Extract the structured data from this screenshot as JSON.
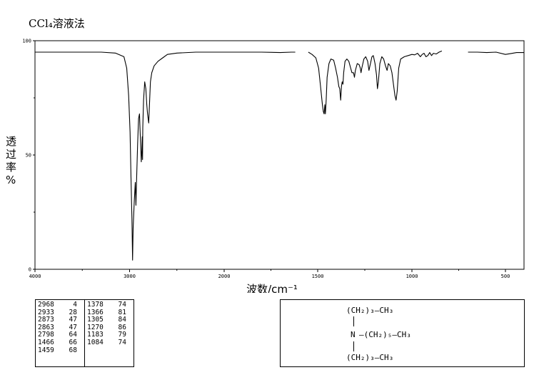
{
  "solvent_label": "CCl₄溶液法",
  "chart_data": {
    "type": "line",
    "title": "",
    "xlabel": "波数/cm⁻¹",
    "ylabel": "透过率%",
    "xlim": [
      4000,
      400
    ],
    "ylim": [
      0,
      100
    ],
    "x_ticks": [
      "4000",
      "3000",
      "2000",
      "1500",
      "1000",
      "500"
    ],
    "y_ticks": [
      "0",
      "50",
      "100"
    ],
    "grid": false,
    "series": [
      {
        "segments": [
          [
            [
              4000,
              95
            ],
            [
              3600,
              95
            ],
            [
              3300,
              95
            ],
            [
              3150,
              94.6
            ],
            [
              3060,
              93
            ],
            [
              3030,
              88
            ],
            [
              3010,
              76
            ],
            [
              2995,
              60
            ],
            [
              2985,
              40
            ],
            [
              2975,
              22
            ],
            [
              2968,
              4
            ],
            [
              2962,
              18
            ],
            [
              2950,
              30
            ],
            [
              2940,
              38
            ],
            [
              2933,
              28
            ],
            [
              2925,
              40
            ],
            [
              2915,
              55
            ],
            [
              2905,
              66
            ],
            [
              2895,
              68
            ],
            [
              2888,
              60
            ],
            [
              2881,
              52
            ],
            [
              2876,
              47
            ],
            [
              2870,
              52
            ],
            [
              2866,
              58
            ],
            [
              2863,
              48
            ],
            [
              2860,
              62
            ],
            [
              2852,
              74
            ],
            [
              2840,
              82
            ],
            [
              2828,
              79
            ],
            [
              2818,
              72
            ],
            [
              2810,
              68
            ],
            [
              2798,
              64
            ],
            [
              2792,
              70
            ],
            [
              2780,
              82
            ],
            [
              2765,
              86
            ],
            [
              2740,
              89
            ],
            [
              2700,
              91
            ],
            [
              2650,
              92.5
            ],
            [
              2600,
              94
            ],
            [
              2500,
              94.6
            ],
            [
              2300,
              95
            ],
            [
              2000,
              95
            ],
            [
              1800,
              95
            ],
            [
              1700,
              94.8
            ],
            [
              1640,
              95
            ],
            [
              1620,
              95
            ]
          ],
          [
            [
              1550,
              95
            ],
            [
              1530,
              94
            ],
            [
              1510,
              92.5
            ],
            [
              1495,
              88
            ],
            [
              1485,
              80
            ],
            [
              1475,
              72
            ],
            [
              1470,
              69
            ],
            [
              1466,
              68
            ],
            [
              1462,
              72
            ],
            [
              1459,
              68
            ],
            [
              1455,
              74
            ],
            [
              1450,
              84
            ],
            [
              1440,
              90
            ],
            [
              1430,
              92
            ],
            [
              1415,
              91.5
            ],
            [
              1405,
              88
            ],
            [
              1395,
              84
            ],
            [
              1388,
              80
            ],
            [
              1383,
              79
            ],
            [
              1378,
              74
            ],
            [
              1374,
              80
            ],
            [
              1370,
              82
            ],
            [
              1366,
              81
            ],
            [
              1362,
              86
            ],
            [
              1355,
              91
            ],
            [
              1345,
              92
            ],
            [
              1335,
              91
            ],
            [
              1325,
              88
            ],
            [
              1318,
              86
            ],
            [
              1310,
              86
            ],
            [
              1305,
              84
            ],
            [
              1300,
              87
            ],
            [
              1290,
              90
            ],
            [
              1280,
              89.5
            ],
            [
              1274,
              88
            ],
            [
              1270,
              86
            ],
            [
              1266,
              88
            ],
            [
              1255,
              92
            ],
            [
              1245,
              93
            ],
            [
              1235,
              91
            ],
            [
              1228,
              87
            ],
            [
              1220,
              90
            ],
            [
              1212,
              93
            ],
            [
              1205,
              93.5
            ],
            [
              1196,
              90
            ],
            [
              1188,
              85
            ],
            [
              1183,
              79
            ],
            [
              1178,
              82
            ],
            [
              1170,
              90
            ],
            [
              1160,
              93
            ],
            [
              1150,
              92
            ],
            [
              1140,
              89
            ],
            [
              1132,
              87
            ],
            [
              1125,
              90
            ],
            [
              1115,
              89
            ],
            [
              1106,
              86
            ],
            [
              1098,
              81
            ],
            [
              1090,
              76
            ],
            [
              1084,
              74
            ],
            [
              1078,
              78
            ],
            [
              1070,
              88
            ],
            [
              1060,
              92
            ],
            [
              1040,
              93
            ],
            [
              1020,
              93.5
            ],
            [
              1000,
              94
            ],
            [
              985,
              93.8
            ],
            [
              970,
              94.5
            ],
            [
              955,
              93
            ],
            [
              945,
              94
            ],
            [
              935,
              94.5
            ],
            [
              925,
              93
            ],
            [
              915,
              93.5
            ],
            [
              905,
              94.8
            ],
            [
              895,
              93.5
            ],
            [
              885,
              94.5
            ],
            [
              870,
              94.2
            ],
            [
              855,
              95
            ],
            [
              840,
              95.5
            ]
          ],
          [
            [
              700,
              95
            ],
            [
              650,
              95
            ],
            [
              600,
              94.8
            ],
            [
              550,
              95
            ],
            [
              500,
              94
            ],
            [
              470,
              94.4
            ],
            [
              440,
              94.8
            ],
            [
              400,
              94.8
            ]
          ]
        ]
      }
    ],
    "peak_table": [
      [
        "2968",
        "4"
      ],
      [
        "2933",
        "28"
      ],
      [
        "2873",
        "47"
      ],
      [
        "2863",
        "47"
      ],
      [
        "2798",
        "64"
      ],
      [
        "1466",
        "66"
      ],
      [
        "1459",
        "68"
      ],
      [
        "1378",
        "74"
      ],
      [
        "1366",
        "81"
      ],
      [
        "1305",
        "84"
      ],
      [
        "1270",
        "86"
      ],
      [
        "1183",
        "79"
      ],
      [
        "1084",
        "74"
      ]
    ]
  },
  "structure": {
    "top_group": "(CH₂)₃—CH₃",
    "atom": "N",
    "middle_group": "—(CH₂)₅—CH₃",
    "bottom_group": "(CH₂)₃—CH₃"
  }
}
